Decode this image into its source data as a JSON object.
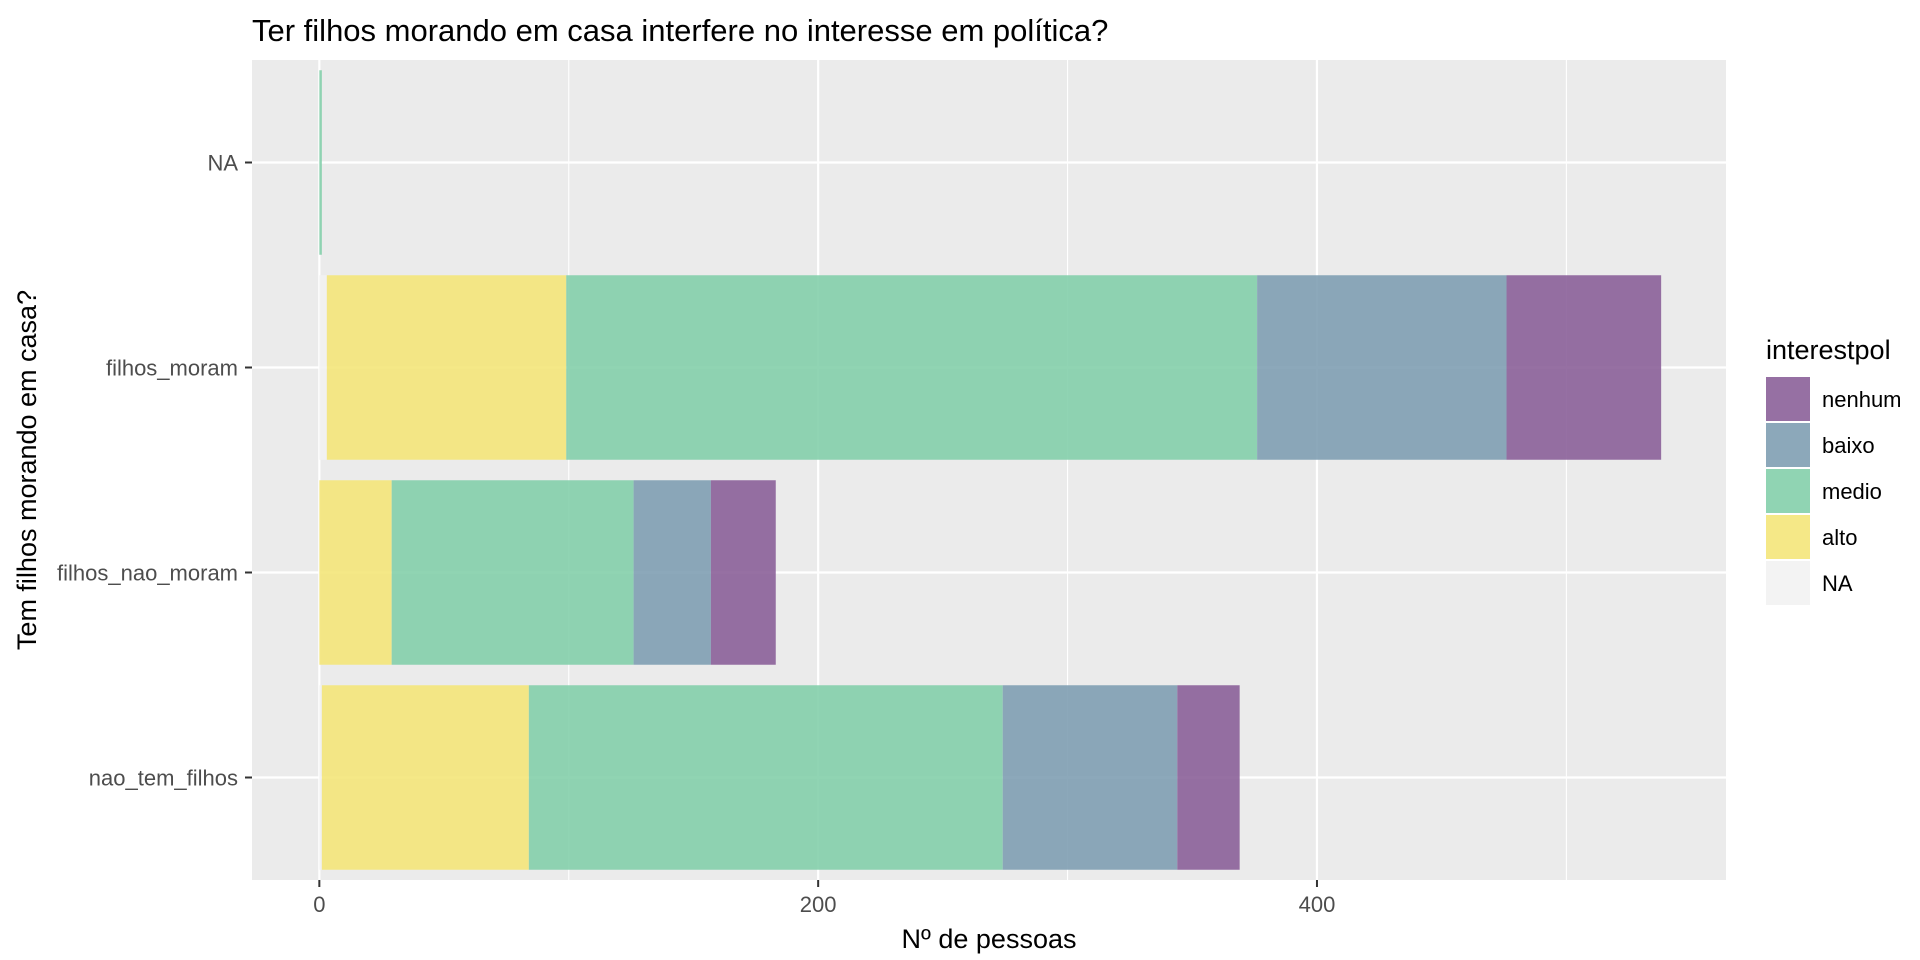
{
  "chart_data": {
    "type": "bar",
    "orientation": "horizontal",
    "stacked": true,
    "title": "Ter filhos morando em casa interfere no interesse em política?",
    "xlabel": "Nº de pessoas",
    "ylabel": "Tem filhos morando em casa?",
    "categories": [
      "nao_tem_filhos",
      "filhos_nao_moram",
      "filhos_moram",
      "NA"
    ],
    "xlim": [
      -27,
      564
    ],
    "xticks": [
      0,
      200,
      400
    ],
    "xtick_labels": [
      "0",
      "200",
      "400"
    ],
    "grid": true,
    "legend": {
      "title": "interestpol",
      "position": "right",
      "entries": [
        {
          "label": "nenhum",
          "color": "#8b6199"
        },
        {
          "label": "baixo",
          "color": "#809fb3"
        },
        {
          "label": "medio",
          "color": "#84cfab"
        },
        {
          "label": "alto",
          "color": "#f4e57a"
        },
        {
          "label": "NA",
          "color": "#f2f2f2"
        }
      ]
    },
    "series": [
      {
        "name": "NA",
        "color": "#f2f2f2",
        "values": [
          1,
          0,
          3,
          0
        ]
      },
      {
        "name": "alto",
        "color": "#f4e57a",
        "values": [
          83,
          29,
          96,
          0
        ]
      },
      {
        "name": "medio",
        "color": "#84cfab",
        "values": [
          190,
          97,
          277,
          1
        ]
      },
      {
        "name": "baixo",
        "color": "#809fb3",
        "values": [
          70,
          31,
          100,
          0
        ]
      },
      {
        "name": "nenhum",
        "color": "#8b6199",
        "values": [
          25,
          26,
          62,
          0
        ]
      }
    ]
  }
}
